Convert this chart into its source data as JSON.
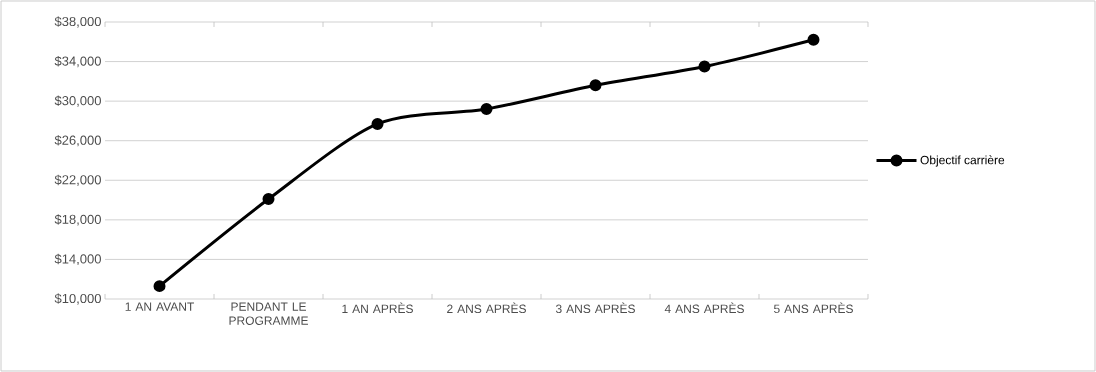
{
  "chart_data": {
    "type": "line",
    "categories": [
      "1 AN AVANT",
      "PENDANT LE PROGRAMME",
      "1 AN APRÈS",
      "2 ANS APRÈS",
      "3 ANS APRÈS",
      "4 ANS APRÈS",
      "5 ANS APRÈS"
    ],
    "series": [
      {
        "name": "Objectif carrière",
        "color": "#000000",
        "values": [
          11300,
          20100,
          27700,
          29200,
          31600,
          33500,
          36200
        ]
      }
    ],
    "ylim": [
      10000,
      38000
    ],
    "yticks": [
      {
        "value": 10000,
        "label": "$10,000"
      },
      {
        "value": 14000,
        "label": "$14,000"
      },
      {
        "value": 18000,
        "label": "$18,000"
      },
      {
        "value": 22000,
        "label": "$22,000"
      },
      {
        "value": 26000,
        "label": "$26,000"
      },
      {
        "value": 30000,
        "label": "$30,000"
      },
      {
        "value": 34000,
        "label": "$34,000"
      },
      {
        "value": 38000,
        "label": "$38,000"
      }
    ],
    "grid": "y",
    "legend": "right",
    "marker": "circle",
    "line_style": "solid"
  }
}
